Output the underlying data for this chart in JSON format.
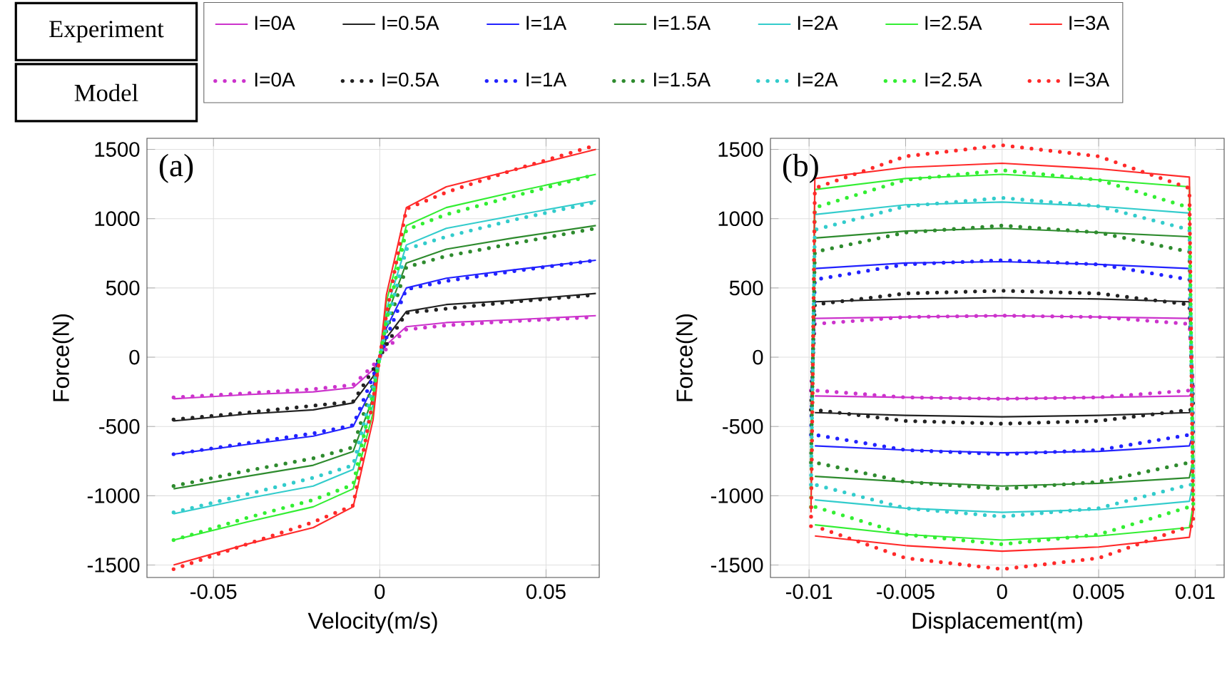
{
  "chart_data": [
    {
      "type": "line",
      "xlabel": "Velocity(m/s)",
      "ylabel": "Force(N)",
      "annotations": [
        "(a)",
        "Experiment",
        "Model"
      ],
      "grid": true,
      "legend": "top",
      "xlim": [
        -0.07,
        0.066
      ],
      "ylim": [
        -1590,
        1580
      ],
      "xticks": [
        -0.05,
        0,
        0.05
      ],
      "yticks": [
        -1500,
        -1000,
        -500,
        0,
        500,
        1000,
        1500
      ],
      "x": [
        -0.062,
        -0.04,
        -0.02,
        -0.008,
        -0.002,
        0.002,
        0.008,
        0.02,
        0.04,
        0.065
      ],
      "series": [
        {
          "name": "I=0A",
          "color": "#cc33cc",
          "line_style": "solid",
          "values": [
            -300,
            -270,
            -250,
            -220,
            -90,
            90,
            220,
            250,
            270,
            300
          ]
        },
        {
          "name": "I=0.5A",
          "color": "#222222",
          "line_style": "solid",
          "values": [
            -460,
            -410,
            -380,
            -330,
            -140,
            140,
            330,
            380,
            410,
            460
          ]
        },
        {
          "name": "I=1A",
          "color": "#2222ff",
          "line_style": "solid",
          "values": [
            -700,
            -630,
            -570,
            -500,
            -210,
            210,
            500,
            570,
            630,
            700
          ]
        },
        {
          "name": "I=1.5A",
          "color": "#2e8b2e",
          "line_style": "solid",
          "values": [
            -950,
            -860,
            -780,
            -680,
            -290,
            290,
            680,
            780,
            860,
            950
          ]
        },
        {
          "name": "I=2A",
          "color": "#33cccc",
          "line_style": "solid",
          "values": [
            -1130,
            -1020,
            -930,
            -810,
            -340,
            340,
            810,
            930,
            1020,
            1130
          ]
        },
        {
          "name": "I=2.5A",
          "color": "#33ee33",
          "line_style": "solid",
          "values": [
            -1320,
            -1190,
            -1080,
            -950,
            -400,
            400,
            950,
            1080,
            1190,
            1320
          ]
        },
        {
          "name": "I=3A",
          "color": "#ff2a2a",
          "line_style": "solid",
          "values": [
            -1500,
            -1350,
            -1230,
            -1080,
            -450,
            450,
            1080,
            1230,
            1350,
            1500
          ]
        },
        {
          "name": "I=0A",
          "color": "#cc33cc",
          "line_style": "dotted",
          "values": [
            -290,
            -260,
            -230,
            -200,
            -60,
            60,
            200,
            230,
            260,
            290
          ]
        },
        {
          "name": "I=0.5A",
          "color": "#222222",
          "line_style": "dotted",
          "values": [
            -450,
            -400,
            -350,
            -320,
            -90,
            90,
            320,
            350,
            400,
            450
          ]
        },
        {
          "name": "I=1A",
          "color": "#2222ff",
          "line_style": "dotted",
          "values": [
            -700,
            -620,
            -550,
            -490,
            -140,
            140,
            490,
            550,
            620,
            700
          ]
        },
        {
          "name": "I=1.5A",
          "color": "#2e8b2e",
          "line_style": "dotted",
          "values": [
            -930,
            -820,
            -730,
            -650,
            -190,
            190,
            650,
            730,
            820,
            930
          ]
        },
        {
          "name": "I=2A",
          "color": "#33cccc",
          "line_style": "dotted",
          "values": [
            -1120,
            -990,
            -870,
            -780,
            -220,
            220,
            780,
            870,
            990,
            1120
          ]
        },
        {
          "name": "I=2.5A",
          "color": "#33ee33",
          "line_style": "dotted",
          "values": [
            -1320,
            -1160,
            -1030,
            -920,
            -260,
            260,
            920,
            1030,
            1160,
            1320
          ]
        },
        {
          "name": "I=3A",
          "color": "#ff2a2a",
          "line_style": "dotted",
          "values": [
            -1530,
            -1350,
            -1190,
            -1070,
            -310,
            310,
            1070,
            1190,
            1350,
            1530
          ]
        }
      ]
    },
    {
      "type": "line",
      "xlabel": "Displacement(m)",
      "ylabel": "Force(N)",
      "annotations": [
        "(b)"
      ],
      "grid": true,
      "xlim": [
        -0.012,
        0.0115
      ],
      "ylim": [
        -1590,
        1580
      ],
      "xticks": [
        -0.01,
        -0.005,
        0,
        0.005,
        0.01
      ],
      "yticks": [
        -1500,
        -1000,
        -500,
        0,
        500,
        1000,
        1500
      ],
      "x": [
        -0.0099,
        -0.0097,
        -0.005,
        0,
        0.005,
        0.0097,
        0.0099,
        0.0097,
        0.005,
        0,
        -0.005,
        -0.0097
      ],
      "series": [
        {
          "color": "#cc33cc",
          "line_style": "solid",
          "values": [
            -240,
            280,
            290,
            300,
            290,
            280,
            -240,
            -280,
            -290,
            -300,
            -290,
            -280
          ]
        },
        {
          "color": "#222222",
          "line_style": "solid",
          "values": [
            -340,
            400,
            420,
            430,
            420,
            400,
            -340,
            -400,
            -420,
            -430,
            -420,
            -400
          ]
        },
        {
          "color": "#2222ff",
          "line_style": "solid",
          "values": [
            -550,
            640,
            680,
            690,
            670,
            640,
            -550,
            -640,
            -680,
            -690,
            -670,
            -640
          ]
        },
        {
          "color": "#2e8b2e",
          "line_style": "solid",
          "values": [
            -740,
            860,
            910,
            930,
            900,
            870,
            -740,
            -870,
            -910,
            -930,
            -900,
            -860
          ]
        },
        {
          "color": "#33cccc",
          "line_style": "solid",
          "values": [
            -900,
            1030,
            1100,
            1120,
            1090,
            1040,
            -900,
            -1040,
            -1100,
            -1120,
            -1090,
            -1030
          ]
        },
        {
          "color": "#33ee33",
          "line_style": "solid",
          "values": [
            -1060,
            1210,
            1290,
            1320,
            1280,
            1230,
            -1060,
            -1230,
            -1290,
            -1320,
            -1280,
            -1210
          ]
        },
        {
          "color": "#ff2a2a",
          "line_style": "solid",
          "values": [
            -1120,
            1290,
            1370,
            1400,
            1360,
            1300,
            -1120,
            -1300,
            -1370,
            -1400,
            -1360,
            -1290
          ]
        },
        {
          "color": "#cc33cc",
          "line_style": "dotted",
          "values": [
            -240,
            240,
            290,
            300,
            290,
            240,
            -240,
            -240,
            -290,
            -300,
            -290,
            -240
          ]
        },
        {
          "color": "#222222",
          "line_style": "dotted",
          "values": [
            -380,
            380,
            460,
            480,
            460,
            380,
            -380,
            -380,
            -460,
            -480,
            -460,
            -380
          ]
        },
        {
          "color": "#2222ff",
          "line_style": "dotted",
          "values": [
            -560,
            560,
            670,
            700,
            670,
            560,
            -560,
            -560,
            -670,
            -700,
            -670,
            -560
          ]
        },
        {
          "color": "#2e8b2e",
          "line_style": "dotted",
          "values": [
            -760,
            760,
            900,
            950,
            900,
            760,
            -760,
            -760,
            -900,
            -950,
            -900,
            -760
          ]
        },
        {
          "color": "#33cccc",
          "line_style": "dotted",
          "values": [
            -920,
            920,
            1090,
            1150,
            1090,
            920,
            -920,
            -920,
            -1090,
            -1150,
            -1090,
            -920
          ]
        },
        {
          "color": "#33ee33",
          "line_style": "dotted",
          "values": [
            -1080,
            1080,
            1280,
            1350,
            1280,
            1080,
            -1080,
            -1080,
            -1280,
            -1350,
            -1280,
            -1080
          ]
        },
        {
          "color": "#ff2a2a",
          "line_style": "dotted",
          "values": [
            -1220,
            1220,
            1450,
            1530,
            1450,
            1220,
            -1220,
            -1220,
            -1450,
            -1530,
            -1450,
            -1220
          ]
        }
      ]
    }
  ]
}
